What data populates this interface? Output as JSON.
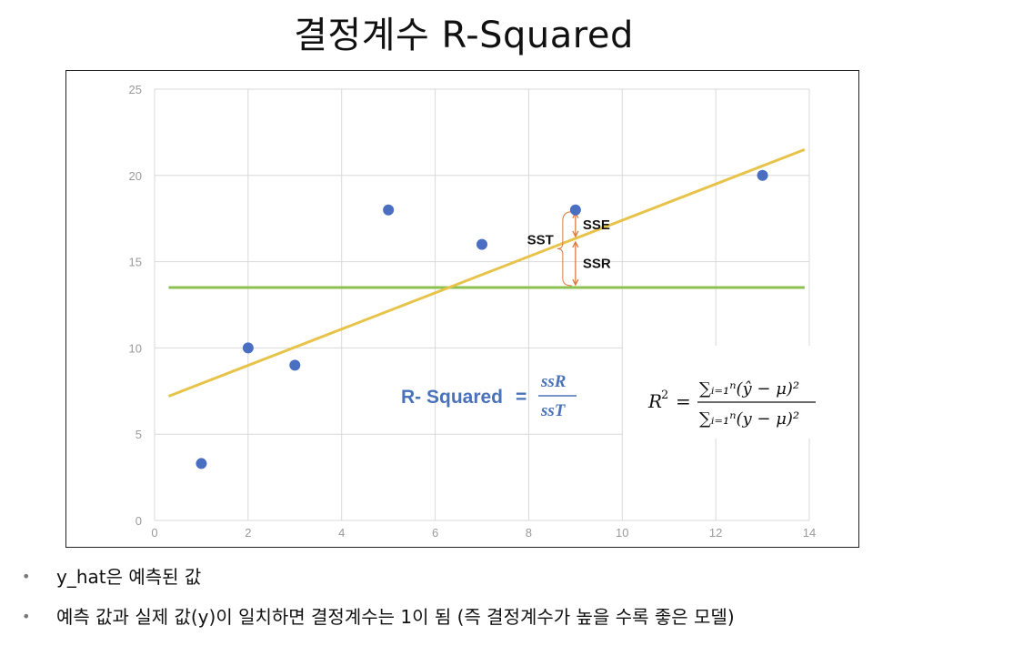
{
  "title": "결정계수 R-Squared",
  "chart_data": {
    "type": "scatter",
    "x_ticks": [
      "0",
      "2",
      "4",
      "6",
      "8",
      "10",
      "12",
      "14"
    ],
    "y_ticks": [
      "0",
      "5",
      "10",
      "15",
      "20",
      "25"
    ],
    "xlim": [
      0,
      14
    ],
    "ylim": [
      0,
      25
    ],
    "grid": true,
    "points": [
      {
        "x": 1,
        "y": 3.3
      },
      {
        "x": 2,
        "y": 10
      },
      {
        "x": 3,
        "y": 9
      },
      {
        "x": 5,
        "y": 18
      },
      {
        "x": 7,
        "y": 16
      },
      {
        "x": 9,
        "y": 18
      },
      {
        "x": 13,
        "y": 20
      }
    ],
    "regression_line": {
      "x": [
        0.3,
        13.9
      ],
      "y": [
        7.2,
        21.5
      ]
    },
    "mean_line": {
      "x": [
        0.3,
        13.9
      ],
      "y": [
        13.5,
        13.5
      ]
    },
    "annotations": {
      "sse_label": "SSE",
      "ssr_label": "SSR",
      "sst_label": "SST",
      "bracket_x": 9,
      "observed_y": 18,
      "predicted_y": 16.3,
      "mean_y": 13.5
    },
    "r_squared_label": "R- Squared",
    "r_squared_equals": "=",
    "r_squared_numerator": "ssR",
    "r_squared_denominator": "ssT",
    "formula": {
      "lhs": "R",
      "lhs_power": "2",
      "equals": "=",
      "numerator": "∑ᵢ₌₁ⁿ(ŷ − μ)²",
      "denominator": "∑ᵢ₌₁ⁿ(y − μ)²"
    }
  },
  "colors": {
    "points": "#4a6fc2",
    "regression_line": "#e8c34a",
    "mean_line": "#8cc152",
    "sse_arrow": "#d97a3c",
    "grid": "#d9d9d9",
    "rsq_text": "#4a72b8"
  },
  "bullets": [
    "y_hat은 예측된 값",
    "예측 값과 실제 값(y)이 일치하면 결정계수는 1이 됨 (즉 결정계수가 높을 수록 좋은 모델)"
  ],
  "bullet_symbol": "•"
}
